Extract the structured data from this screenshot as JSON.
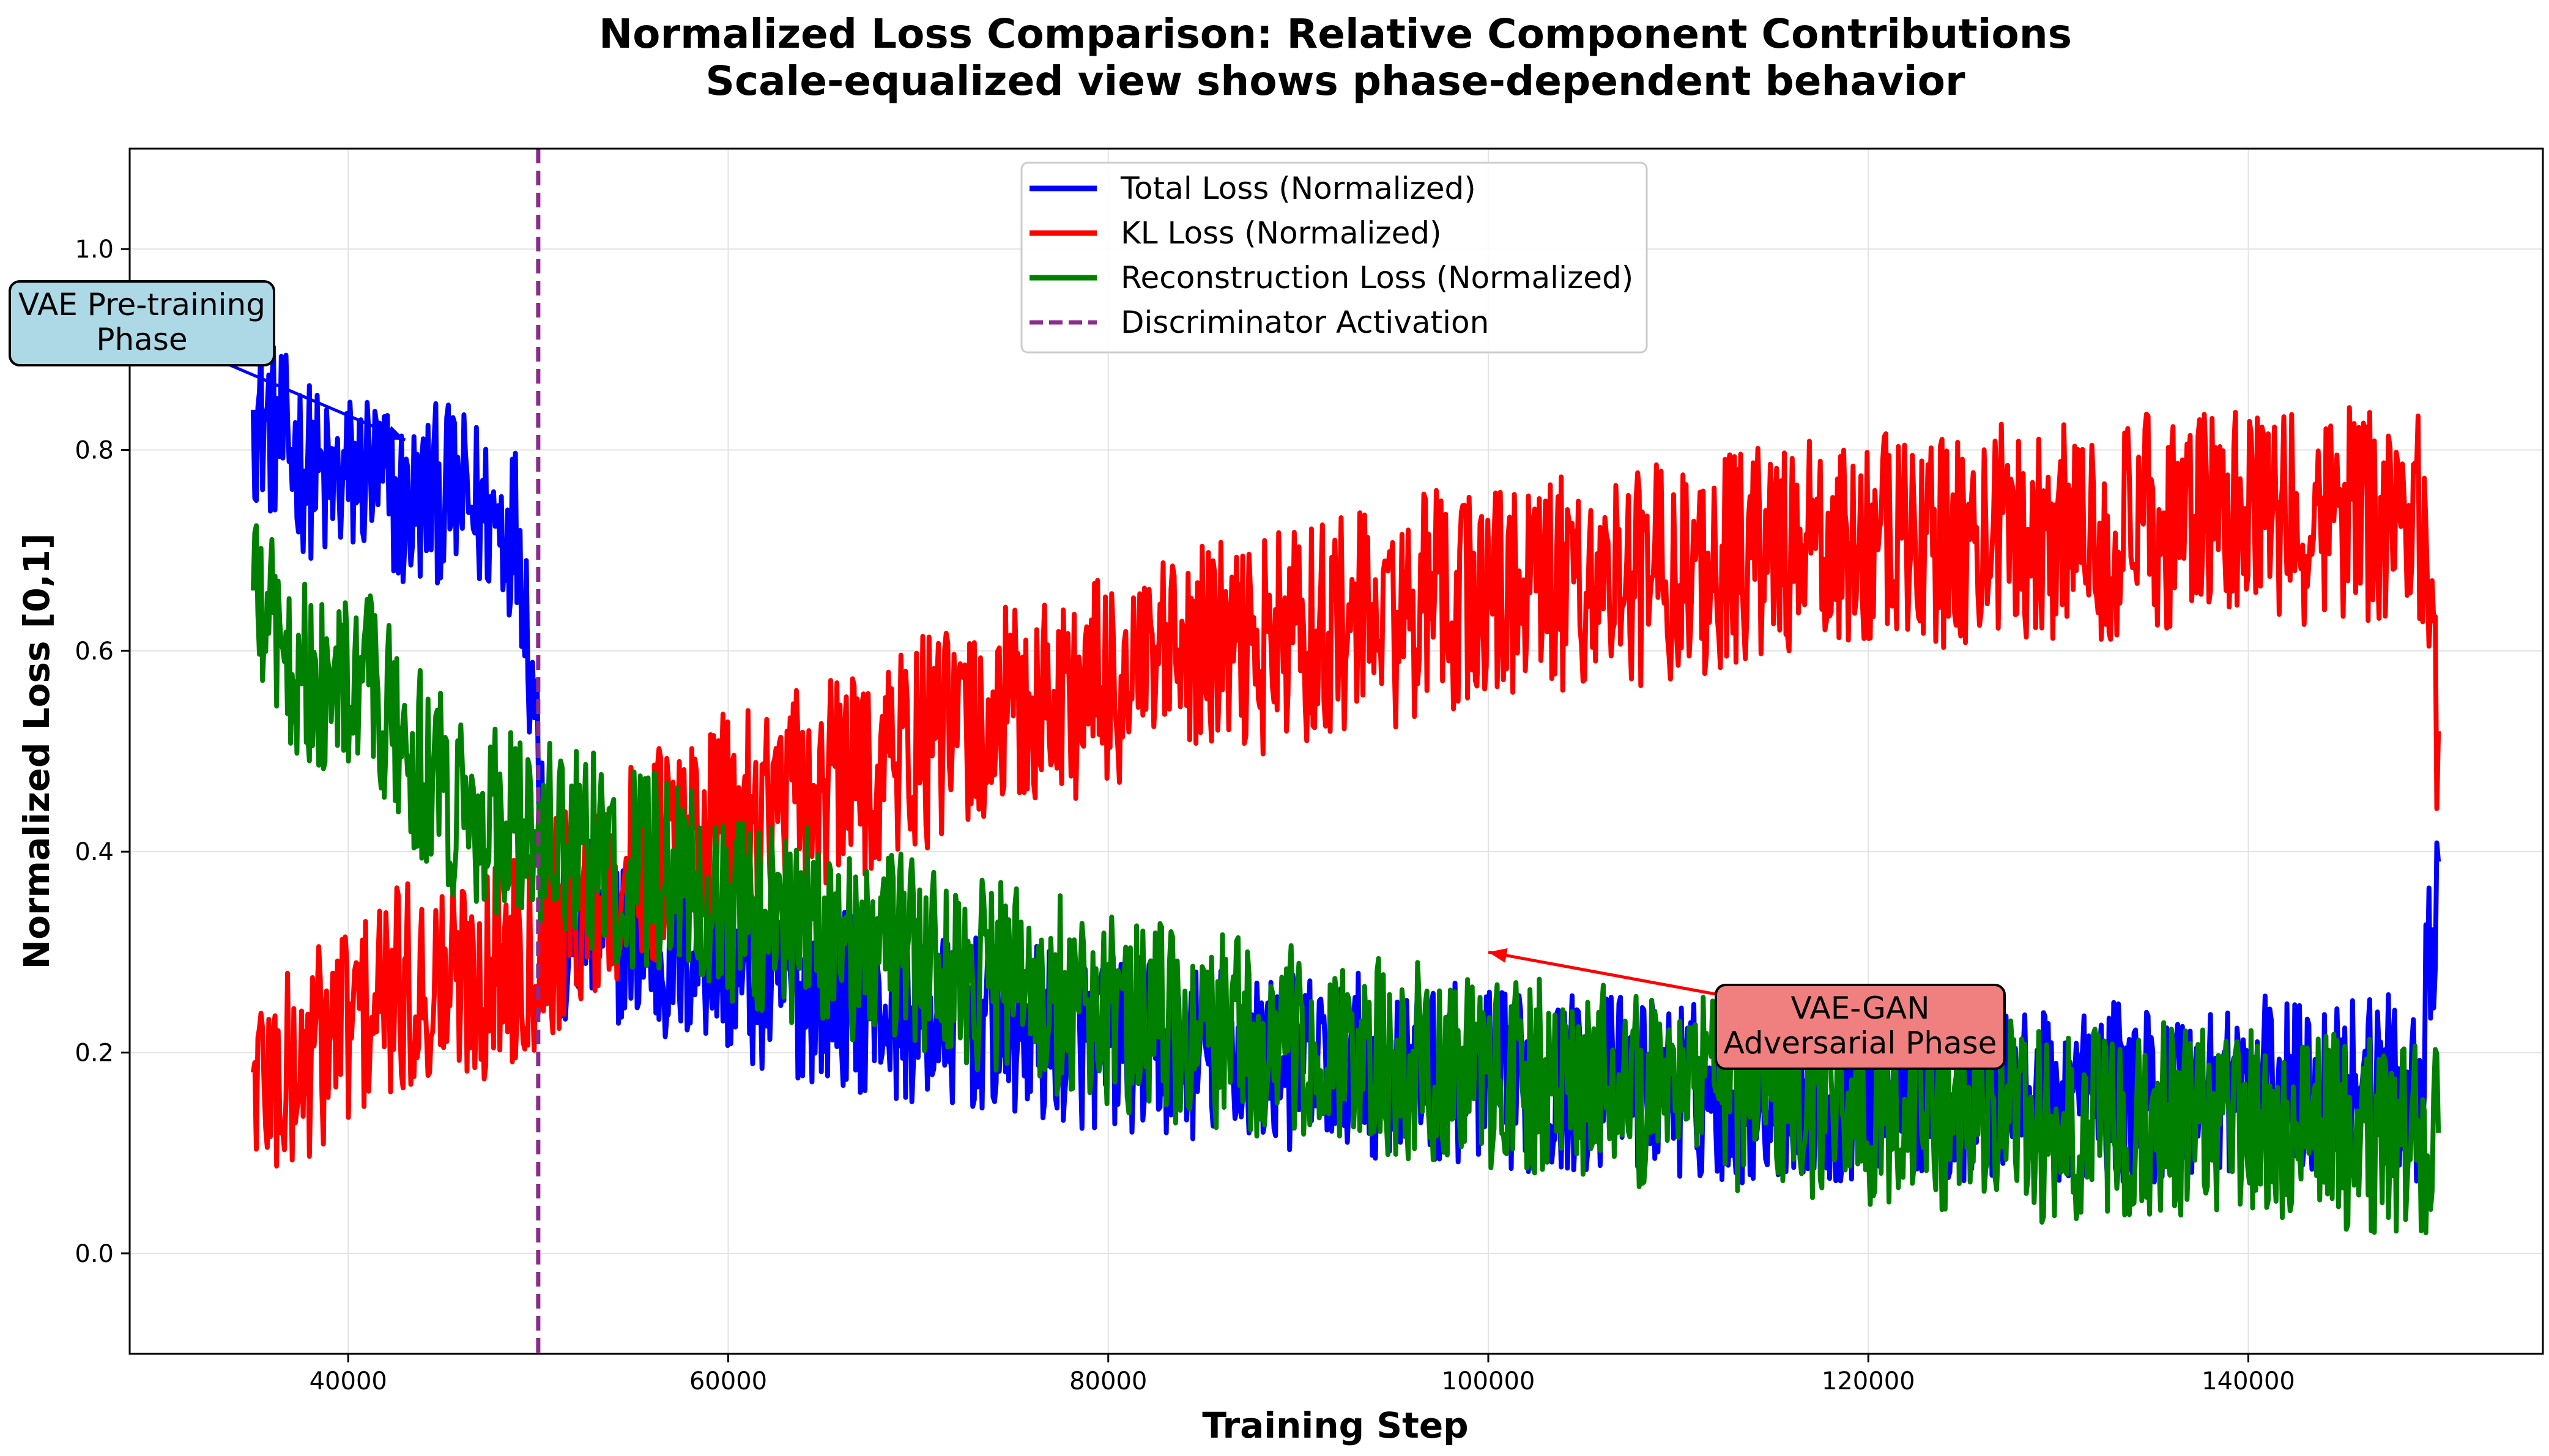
{
  "chart_data": {
    "type": "line",
    "title": "Normalized Loss Comparison: Relative Component Contributions",
    "subtitle": "Scale-equalized view shows phase-dependent behavior",
    "xlabel": "Training Step",
    "ylabel": "Normalized Loss [0,1]",
    "xlim": [
      28500,
      155500
    ],
    "ylim": [
      -0.1,
      1.1
    ],
    "xticks": [
      40000,
      60000,
      80000,
      100000,
      120000,
      140000
    ],
    "yticks": [
      0.0,
      0.2,
      0.4,
      0.6,
      0.8,
      1.0
    ],
    "xtick_labels": [
      "40000",
      "60000",
      "80000",
      "100000",
      "120000",
      "140000"
    ],
    "ytick_labels": [
      "0.0",
      "0.2",
      "0.4",
      "0.6",
      "0.8",
      "1.0"
    ],
    "grid": true,
    "legend_position": "top-center",
    "x": [
      35000,
      37000,
      39000,
      41000,
      43000,
      45000,
      47000,
      49000,
      51000,
      53000,
      55000,
      57000,
      59000,
      61000,
      63000,
      65000,
      67000,
      69000,
      71000,
      73000,
      75000,
      77000,
      79000,
      81000,
      83000,
      85000,
      87000,
      89000,
      91000,
      93000,
      95000,
      97000,
      99000,
      101000,
      103000,
      105000,
      107000,
      109000,
      111000,
      113000,
      115000,
      117000,
      119000,
      121000,
      123000,
      125000,
      127000,
      129000,
      131000,
      133000,
      135000,
      137000,
      139000,
      141000,
      143000,
      145000,
      147000,
      149000,
      150000
    ],
    "series": [
      {
        "name": "Total Loss (Normalized)",
        "color": "#0000ff",
        "values": [
          0.84,
          0.8,
          0.76,
          0.78,
          0.74,
          0.76,
          0.74,
          0.72,
          0.3,
          0.33,
          0.31,
          0.29,
          0.3,
          0.27,
          0.26,
          0.26,
          0.25,
          0.24,
          0.23,
          0.23,
          0.22,
          0.22,
          0.21,
          0.21,
          0.2,
          0.2,
          0.2,
          0.19,
          0.19,
          0.19,
          0.18,
          0.18,
          0.18,
          0.17,
          0.17,
          0.17,
          0.17,
          0.17,
          0.16,
          0.16,
          0.16,
          0.16,
          0.16,
          0.17,
          0.16,
          0.16,
          0.16,
          0.15,
          0.16,
          0.16,
          0.16,
          0.16,
          0.17,
          0.17,
          0.16,
          0.18,
          0.17,
          0.16,
          0.39
        ]
      },
      {
        "name": "KL Loss (Normalized)",
        "color": "#ff0000",
        "values": [
          0.18,
          0.17,
          0.22,
          0.24,
          0.26,
          0.27,
          0.28,
          0.3,
          0.33,
          0.36,
          0.38,
          0.41,
          0.42,
          0.44,
          0.45,
          0.46,
          0.48,
          0.5,
          0.51,
          0.52,
          0.54,
          0.55,
          0.56,
          0.57,
          0.58,
          0.6,
          0.6,
          0.61,
          0.62,
          0.63,
          0.63,
          0.65,
          0.65,
          0.66,
          0.66,
          0.67,
          0.67,
          0.68,
          0.68,
          0.69,
          0.7,
          0.7,
          0.7,
          0.71,
          0.71,
          0.71,
          0.72,
          0.72,
          0.72,
          0.72,
          0.73,
          0.73,
          0.73,
          0.73,
          0.73,
          0.74,
          0.74,
          0.74,
          0.52
        ]
      },
      {
        "name": "Reconstruction Loss (Normalized)",
        "color": "#008000",
        "values": [
          0.66,
          0.6,
          0.55,
          0.57,
          0.5,
          0.46,
          0.44,
          0.43,
          0.42,
          0.4,
          0.38,
          0.38,
          0.36,
          0.34,
          0.33,
          0.32,
          0.31,
          0.3,
          0.29,
          0.28,
          0.27,
          0.26,
          0.25,
          0.24,
          0.23,
          0.22,
          0.22,
          0.21,
          0.2,
          0.2,
          0.19,
          0.19,
          0.18,
          0.18,
          0.18,
          0.17,
          0.17,
          0.16,
          0.16,
          0.16,
          0.15,
          0.15,
          0.15,
          0.14,
          0.14,
          0.14,
          0.14,
          0.13,
          0.13,
          0.13,
          0.13,
          0.13,
          0.13,
          0.12,
          0.13,
          0.12,
          0.12,
          0.12,
          0.12
        ]
      }
    ],
    "vline": {
      "name": "Discriminator Activation",
      "x": 50000,
      "color": "#8b2c8c"
    },
    "annotations": [
      {
        "text_line1": "VAE Pre-training",
        "text_line2": "Phase",
        "point": [
          43000,
          0.81
        ],
        "box_color": "#add8e6",
        "arrow_color": "#0000ff"
      },
      {
        "text_line1": "VAE-GAN",
        "text_line2": "Adversarial Phase",
        "point": [
          100000,
          0.3
        ],
        "box_color": "#f08080",
        "arrow_color": "#ff0000"
      }
    ]
  }
}
